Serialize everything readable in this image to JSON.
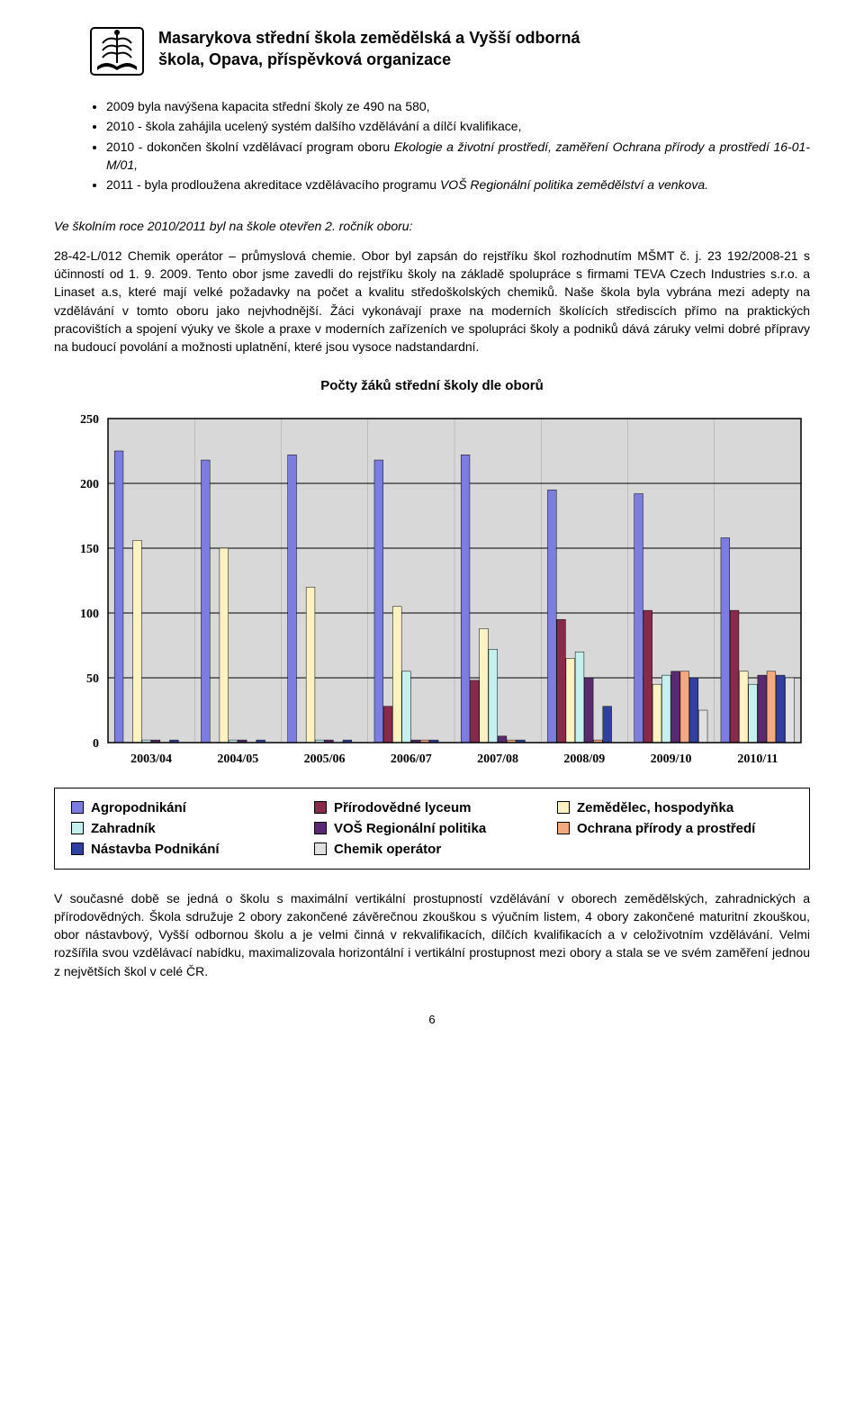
{
  "header": {
    "title_l1": "Masarykova střední škola zemědělská a Vyšší odborná",
    "title_l2": "škola, Opava, příspěvková organizace"
  },
  "bullets": [
    {
      "pre": "2009 byla navýšena kapacita střední školy ze 490 na 580,",
      "it": ""
    },
    {
      "pre": "2010 - škola zahájila ucelený systém dalšího vzdělávání a dílčí kvalifikace,",
      "it": ""
    },
    {
      "pre": "2010 - dokončen školní vzdělávací program oboru ",
      "it": "Ekologie a životní prostředí, zaměření Ochrana přírody a prostředí 16-01-M/01,"
    },
    {
      "pre": "2011 - byla prodloužena akreditace vzdělávacího programu ",
      "it": "VOŠ Regionální politika zemědělství a venkova."
    }
  ],
  "p_italic": "Ve školním roce 2010/2011 byl na škole otevřen 2. ročník oboru:",
  "p_main": "28-42-L/012 Chemik operátor – průmyslová chemie. Obor byl zapsán do rejstříku škol rozhodnutím MŠMT č. j. 23 192/2008-21 s účinností od 1. 9. 2009. Tento obor jsme zavedli do rejstříku školy na základě spolupráce s firmami TEVA Czech Industries s.r.o. a Linaset a.s, které mají velké požadavky na počet a kvalitu středoškolských chemiků. Naše škola byla vybrána mezi adepty na vzdělávání v tomto oboru jako nejvhodnější. Žáci vykonávají praxe na  moderních školících střediscích přímo na praktických pracovištích a spojení výuky ve škole a praxe v moderních  zařízeních  ve spolupráci  školy a podniků dává záruky velmi dobré přípravy na budoucí povolání a možnosti uplatnění, které jsou vysoce nadstandardní.",
  "chart": {
    "title": "Počty žáků střední školy dle oborů",
    "type": "bar",
    "categories": [
      "2003/04",
      "2004/05",
      "2005/06",
      "2006/07",
      "2007/08",
      "2008/09",
      "2009/10",
      "2010/11"
    ],
    "series": [
      {
        "name": "Agropodnikání",
        "color": "#7b7ee0",
        "values": [
          225,
          218,
          222,
          218,
          222,
          195,
          192,
          158
        ]
      },
      {
        "name": "Přírodovědné lyceum",
        "color": "#8a2a4a",
        "values": [
          0,
          0,
          0,
          28,
          48,
          95,
          102,
          102
        ]
      },
      {
        "name": "Zemědělec, hospodyňka",
        "color": "#fff2c2",
        "values": [
          156,
          150,
          120,
          105,
          88,
          65,
          45,
          55
        ]
      },
      {
        "name": "Zahradník",
        "color": "#c4f0f0",
        "values": [
          2,
          2,
          2,
          55,
          72,
          70,
          52,
          45
        ]
      },
      {
        "name": "VOŠ Regionální politika",
        "color": "#5a2a6f",
        "values": [
          2,
          2,
          2,
          2,
          5,
          50,
          55,
          52
        ]
      },
      {
        "name": "Ochrana přírody a prostředí",
        "color": "#f5a97f",
        "values": [
          0,
          0,
          0,
          2,
          2,
          2,
          55,
          55
        ]
      },
      {
        "name": "Nástavba Podnikání",
        "color": "#3040a0",
        "values": [
          2,
          2,
          2,
          2,
          2,
          28,
          50,
          52
        ]
      },
      {
        "name": "Chemik operátor",
        "color": "#e0e0e0",
        "values": [
          0,
          0,
          0,
          0,
          0,
          0,
          25,
          50
        ]
      }
    ],
    "ylim": [
      0,
      250
    ],
    "ytick_step": 50,
    "bar_width": 0.85,
    "grid_color": "#000000",
    "background_color": "#d8d8d8",
    "label_fontsize": 14,
    "tick_fontsize": 14,
    "tick_fontweight": "bold"
  },
  "legend_items": [
    {
      "label": "Agropodnikání",
      "color": "#7b7ee0"
    },
    {
      "label": "Přírodovědné lyceum",
      "color": "#8a2a4a"
    },
    {
      "label": "Zemědělec, hospodyňka",
      "color": "#fff2c2"
    },
    {
      "label": "Zahradník",
      "color": "#c4f0f0"
    },
    {
      "label": "VOŠ Regionální politika",
      "color": "#5a2a6f"
    },
    {
      "label": "Ochrana přírody a prostředí",
      "color": "#f5a97f"
    },
    {
      "label": "Nástavba Podnikání",
      "color": "#3040a0"
    },
    {
      "label": "Chemik operátor",
      "color": "#e0e0e0"
    }
  ],
  "p_bottom": "V současné době se jedná o školu s maximální vertikální prostupností vzdělávání v oborech zemědělských, zahradnických a přírodovědných. Škola sdružuje 2 obory zakončené závěrečnou zkouškou s výučním listem, 4 obory zakončené maturitní zkouškou, obor nástavbový, Vyšší odbornou školu a je velmi činná v rekvalifikacích, dílčích kvalifikacích a v celoživotním vzdělávání. Velmi rozšířila svou vzdělávací nabídku, maximalizovala horizontální i vertikální prostupnost mezi obory a stala se ve svém zaměření jednou z největších škol v celé ČR.",
  "page_number": "6"
}
